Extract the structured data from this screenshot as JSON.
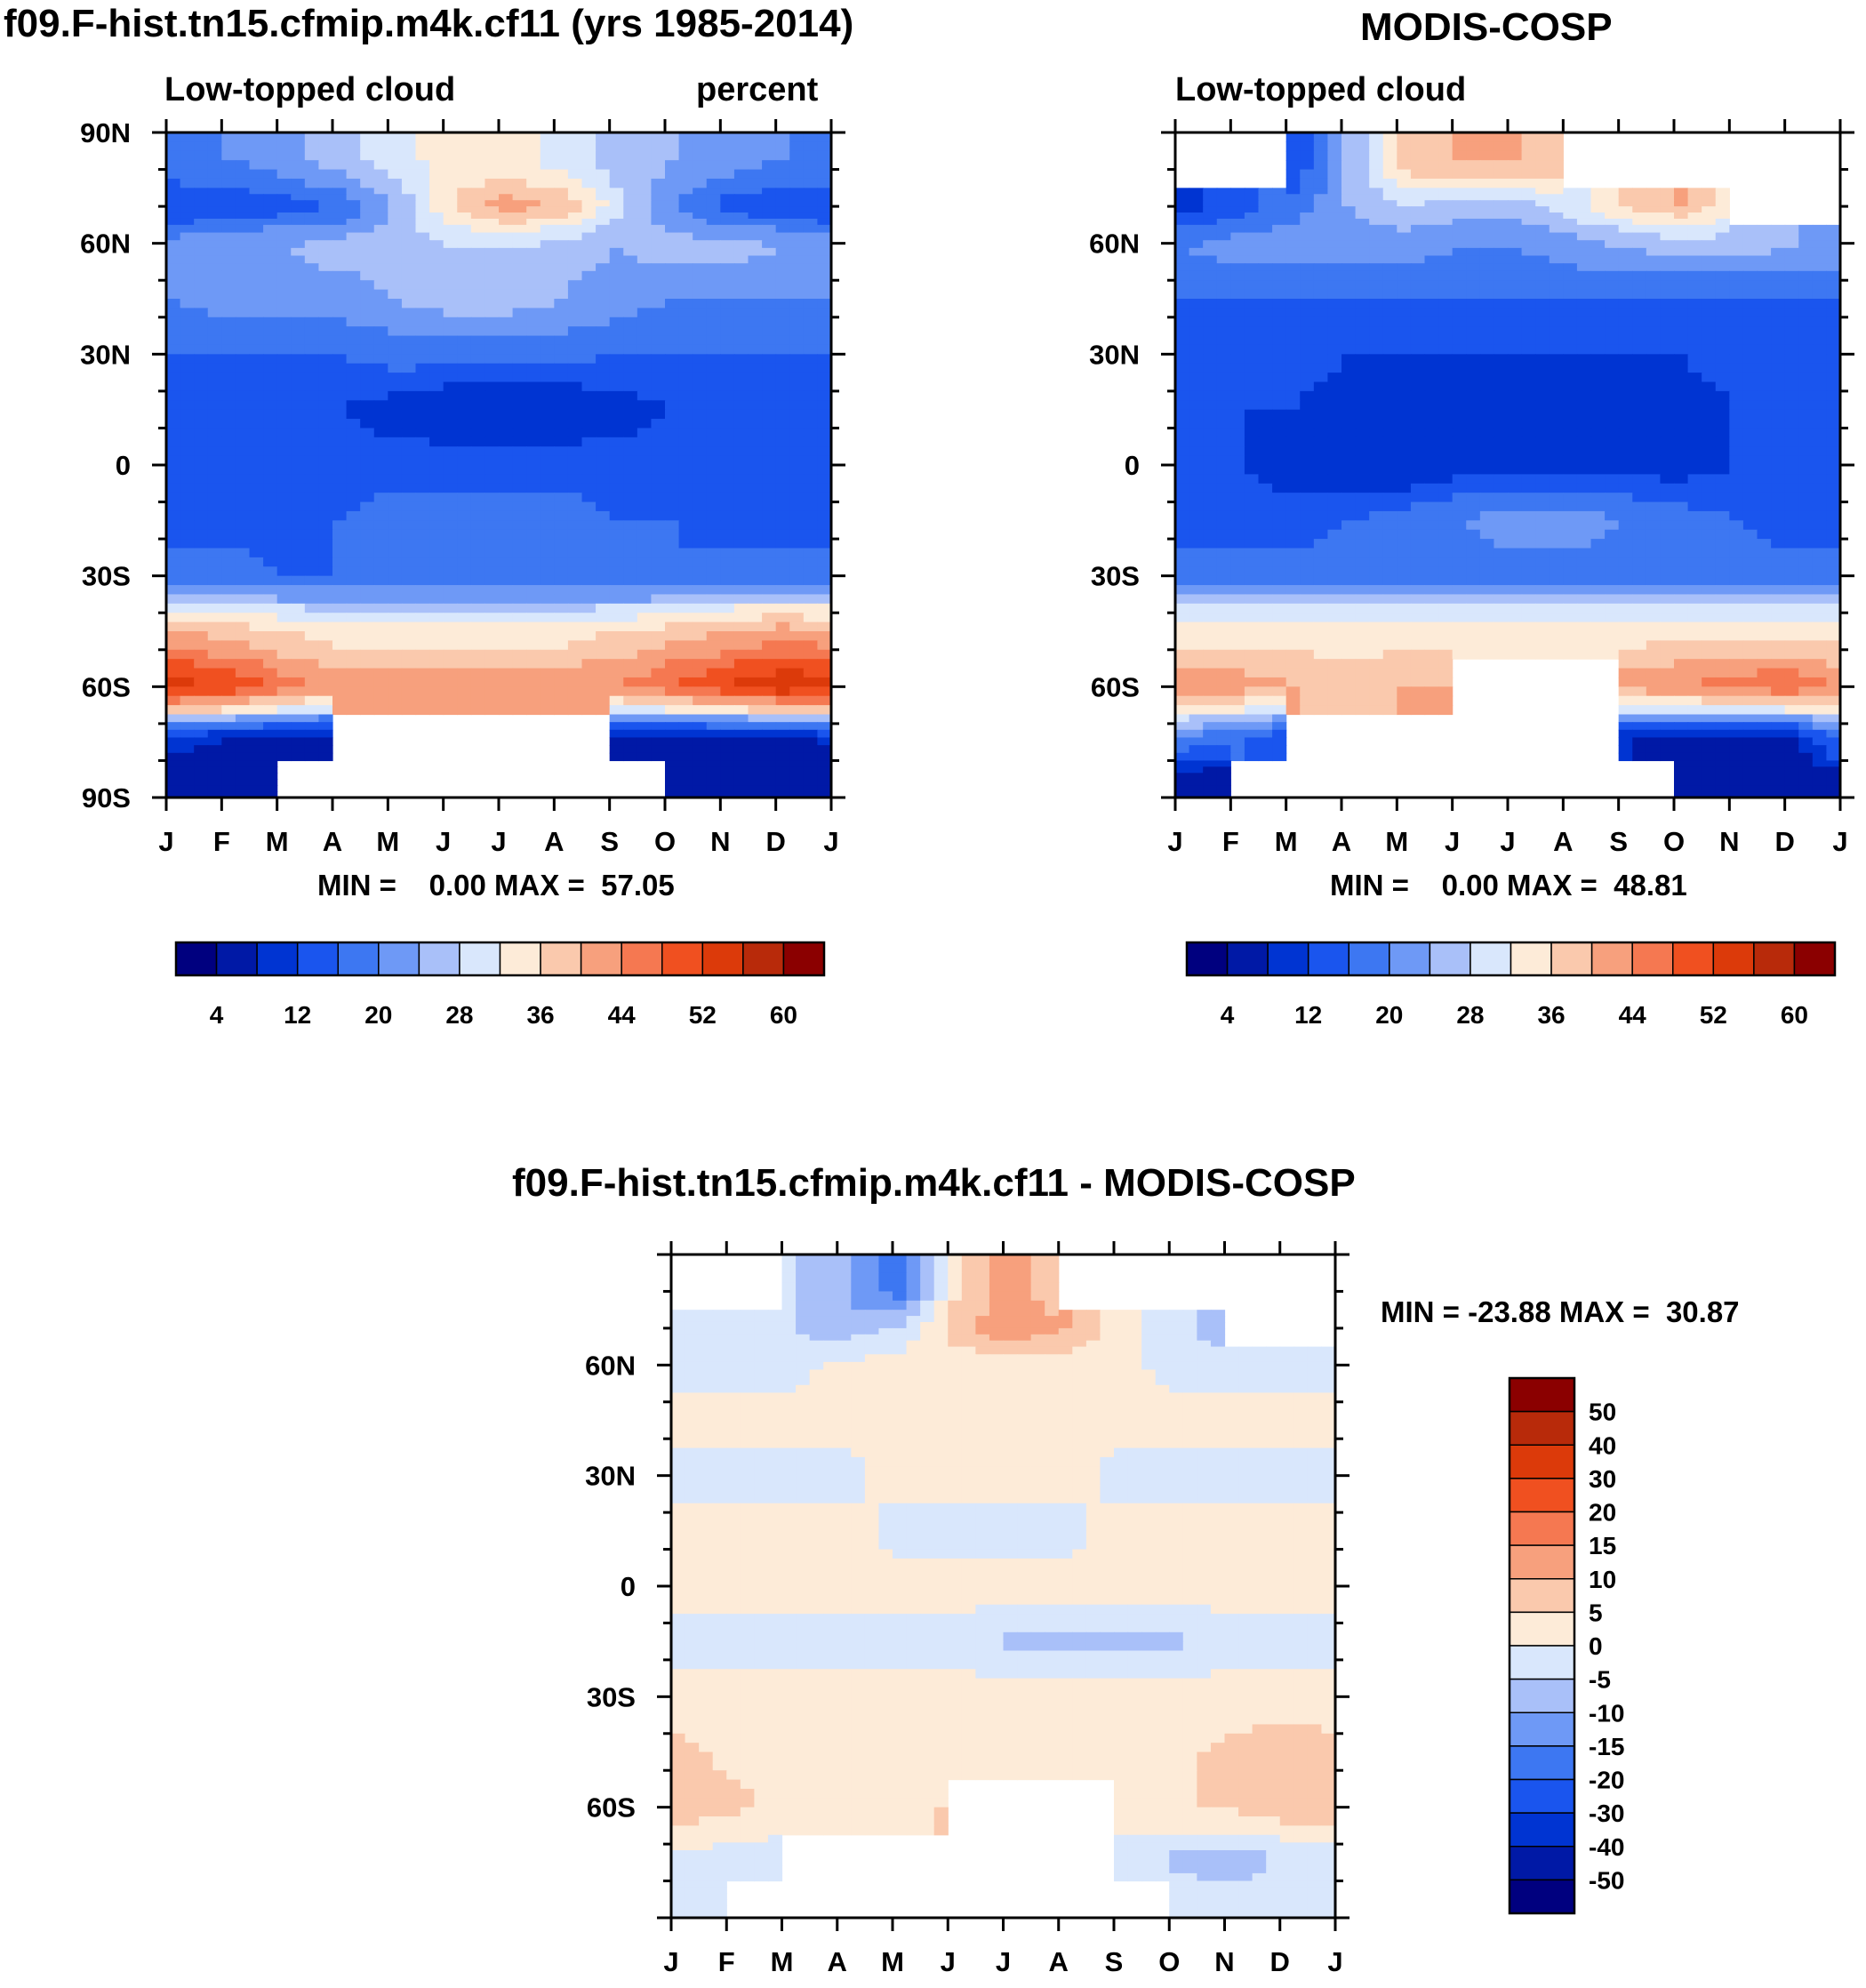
{
  "legend_colors": [
    "#00007f",
    "#0019a6",
    "#0034d2",
    "#1a55ee",
    "#3d77f2",
    "#6e99f6",
    "#a9c0f9",
    "#d9e7fc",
    "#fdebd8",
    "#fac9ad",
    "#f7a07d",
    "#f57851",
    "#f05020",
    "#dc3a0a",
    "#b82a0a",
    "#8b0000"
  ],
  "months": [
    "J",
    "F",
    "M",
    "A",
    "M",
    "J",
    "J",
    "A",
    "S",
    "O",
    "N",
    "D",
    "J"
  ],
  "lat_labels": [
    "90N",
    "60N",
    "30N",
    "0",
    "30S",
    "60S",
    "90S"
  ],
  "panels": [
    {
      "id": "model",
      "title": "f09.F-hist.tn15.cfmip.m4k.cf11 (yrs 1985-2014)",
      "left_subtitle": "Low-topped cloud",
      "right_subtitle": "percent",
      "stats": "MIN =    0.00 MAX =  57.05",
      "min": 0.0,
      "max": 57.05
    },
    {
      "id": "obs",
      "title": "MODIS-COSP",
      "left_subtitle": "Low-topped cloud",
      "right_subtitle": "",
      "stats": "MIN =    0.00 MAX =  48.81",
      "min": 0.0,
      "max": 48.81
    },
    {
      "id": "diff",
      "title": "f09.F-hist.tn15.cfmip.m4k.cf11 - MODIS-COSP",
      "stats": "MIN = -23.88 MAX =  30.87",
      "min": -23.88,
      "max": 30.87
    }
  ],
  "colorbar_top": {
    "labels": [
      "4",
      "12",
      "20",
      "28",
      "36",
      "44",
      "52",
      "60"
    ]
  },
  "colorbar_diff": {
    "labels": [
      "50",
      "40",
      "30",
      "20",
      "15",
      "10",
      "5",
      "0",
      "-5",
      "-10",
      "-15",
      "-20",
      "-30",
      "-40",
      "-50"
    ]
  },
  "chart_data": [
    {
      "type": "heatmap",
      "title": "f09.F-hist.tn15.cfmip.m4k.cf11 (yrs 1985-2014)",
      "subtitle": "Low-topped cloud",
      "units": "percent",
      "x": [
        "J",
        "F",
        "M",
        "A",
        "M",
        "J",
        "J",
        "A",
        "S",
        "O",
        "N",
        "D",
        "J"
      ],
      "y_ticks": [
        "90N",
        "60N",
        "30N",
        "0",
        "30S",
        "60S",
        "90S"
      ],
      "latitude_rows": [
        80,
        70,
        60,
        45,
        30,
        15,
        0,
        -15,
        -30,
        -45,
        -60,
        -75,
        -85
      ],
      "values": [
        [
          18,
          20,
          22,
          26,
          30,
          34,
          34,
          30,
          26,
          24,
          22,
          20,
          18
        ],
        [
          12,
          12,
          14,
          16,
          24,
          36,
          42,
          40,
          30,
          20,
          14,
          12,
          12
        ],
        [
          22,
          24,
          24,
          26,
          26,
          28,
          28,
          26,
          24,
          26,
          26,
          24,
          22
        ],
        [
          20,
          22,
          22,
          22,
          24,
          26,
          26,
          24,
          22,
          20,
          20,
          20,
          20
        ],
        [
          16,
          16,
          16,
          16,
          18,
          18,
          18,
          18,
          16,
          16,
          16,
          16,
          16
        ],
        [
          12,
          12,
          12,
          12,
          10,
          8,
          8,
          8,
          10,
          12,
          12,
          12,
          12
        ],
        [
          12,
          12,
          12,
          14,
          14,
          14,
          14,
          14,
          14,
          14,
          14,
          14,
          12
        ],
        [
          14,
          14,
          14,
          16,
          18,
          18,
          18,
          18,
          16,
          16,
          14,
          14,
          14
        ],
        [
          18,
          18,
          16,
          16,
          16,
          16,
          16,
          16,
          16,
          16,
          18,
          18,
          18
        ],
        [
          40,
          38,
          36,
          34,
          34,
          34,
          34,
          34,
          36,
          38,
          40,
          42,
          40
        ],
        [
          54,
          52,
          46,
          42,
          42,
          42,
          42,
          42,
          44,
          48,
          52,
          56,
          54
        ],
        [
          10,
          8,
          6,
          6,
          null,
          null,
          null,
          null,
          6,
          6,
          6,
          6,
          10
        ],
        [
          4,
          4,
          4,
          null,
          null,
          null,
          null,
          null,
          null,
          4,
          4,
          4,
          4
        ]
      ],
      "min": 0.0,
      "max": 57.05
    },
    {
      "type": "heatmap",
      "title": "MODIS-COSP",
      "subtitle": "Low-topped cloud",
      "x": [
        "J",
        "F",
        "M",
        "A",
        "M",
        "J",
        "J",
        "A",
        "S",
        "O",
        "N",
        "D",
        "J"
      ],
      "y_ticks": [
        "60N",
        "30N",
        "0",
        "30S",
        "60S"
      ],
      "latitude_rows": [
        80,
        70,
        60,
        45,
        30,
        15,
        0,
        -15,
        -30,
        -45,
        -60,
        -75,
        -85
      ],
      "values": [
        [
          null,
          null,
          12,
          24,
          38,
          40,
          40,
          38,
          null,
          null,
          null,
          null,
          null
        ],
        [
          10,
          14,
          18,
          24,
          28,
          26,
          26,
          30,
          36,
          40,
          32,
          null,
          null
        ],
        [
          20,
          22,
          22,
          22,
          22,
          20,
          20,
          22,
          24,
          26,
          26,
          24,
          22
        ],
        [
          16,
          16,
          16,
          16,
          16,
          16,
          16,
          16,
          16,
          16,
          16,
          16,
          16
        ],
        [
          14,
          14,
          14,
          12,
          12,
          12,
          12,
          12,
          12,
          12,
          14,
          14,
          14
        ],
        [
          12,
          12,
          12,
          10,
          10,
          10,
          10,
          10,
          10,
          10,
          12,
          12,
          12
        ],
        [
          12,
          12,
          10,
          8,
          8,
          10,
          10,
          10,
          10,
          10,
          12,
          12,
          12
        ],
        [
          14,
          14,
          14,
          16,
          18,
          20,
          22,
          22,
          20,
          18,
          16,
          14,
          14
        ],
        [
          18,
          18,
          18,
          18,
          18,
          18,
          18,
          18,
          18,
          18,
          18,
          18,
          18
        ],
        [
          34,
          34,
          34,
          34,
          34,
          34,
          34,
          34,
          34,
          34,
          34,
          34,
          34
        ],
        [
          42,
          42,
          40,
          38,
          40,
          40,
          null,
          null,
          42,
          44,
          46,
          48,
          42
        ],
        [
          20,
          16,
          12,
          null,
          null,
          null,
          null,
          null,
          8,
          6,
          6,
          6,
          20
        ],
        [
          6,
          4,
          null,
          null,
          null,
          null,
          null,
          null,
          null,
          4,
          4,
          4,
          6
        ]
      ],
      "min": 0.0,
      "max": 48.81
    },
    {
      "type": "heatmap",
      "title": "f09.F-hist.tn15.cfmip.m4k.cf11 - MODIS-COSP",
      "x": [
        "J",
        "F",
        "M",
        "A",
        "M",
        "J",
        "J",
        "A",
        "S",
        "O",
        "N",
        "D",
        "J"
      ],
      "y_ticks": [
        "60N",
        "30N",
        "0",
        "30S",
        "60S"
      ],
      "latitude_rows": [
        80,
        70,
        60,
        45,
        30,
        15,
        0,
        -15,
        -30,
        -45,
        -60,
        -75,
        -85
      ],
      "values": [
        [
          null,
          null,
          -5,
          -10,
          -20,
          4,
          12,
          6,
          null,
          null,
          null,
          null,
          null
        ],
        [
          -2,
          -5,
          -5,
          -8,
          -4,
          8,
          14,
          10,
          2,
          -4,
          -8,
          null,
          null
        ],
        [
          -2,
          -2,
          -2,
          2,
          2,
          2,
          2,
          2,
          2,
          -2,
          -2,
          -2,
          -2
        ],
        [
          2,
          2,
          2,
          2,
          2,
          2,
          2,
          2,
          2,
          2,
          2,
          2,
          2
        ],
        [
          -2,
          -2,
          -2,
          -2,
          2,
          2,
          2,
          2,
          -2,
          -2,
          -2,
          -2,
          -2
        ],
        [
          2,
          2,
          2,
          2,
          -2,
          -2,
          -2,
          -2,
          2,
          2,
          2,
          2,
          2
        ],
        [
          2,
          2,
          2,
          2,
          2,
          2,
          2,
          2,
          2,
          2,
          2,
          2,
          2
        ],
        [
          -2,
          -2,
          -2,
          -2,
          -2,
          -2,
          -6,
          -6,
          -6,
          -6,
          -2,
          -2,
          -2
        ],
        [
          2,
          2,
          2,
          2,
          2,
          2,
          2,
          2,
          2,
          2,
          2,
          2,
          2
        ],
        [
          6,
          4,
          2,
          2,
          2,
          2,
          2,
          2,
          2,
          4,
          6,
          8,
          6
        ],
        [
          8,
          6,
          4,
          2,
          2,
          6,
          null,
          null,
          2,
          4,
          6,
          8,
          8
        ],
        [
          -2,
          -2,
          -4,
          null,
          null,
          null,
          null,
          null,
          -2,
          -6,
          -8,
          -4,
          -2
        ],
        [
          -2,
          -2,
          null,
          null,
          null,
          null,
          null,
          null,
          null,
          -2,
          -2,
          -2,
          -2
        ]
      ],
      "min": -23.88,
      "max": 30.87
    }
  ]
}
